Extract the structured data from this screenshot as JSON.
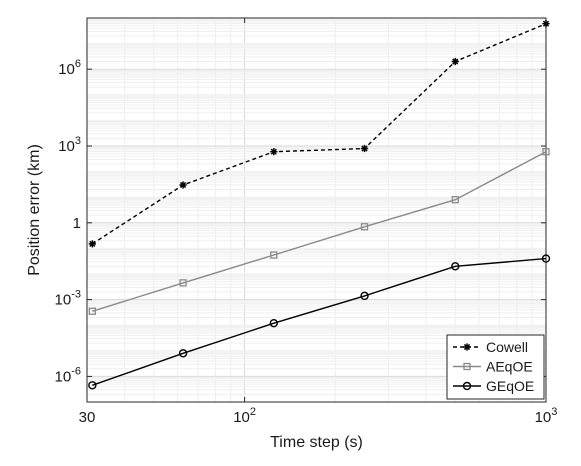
{
  "chart_data": {
    "type": "line",
    "xlabel": "Time step (s)",
    "ylabel": "Position error (km)",
    "xscale": "log",
    "yscale": "log",
    "xlim": [
      30,
      1000
    ],
    "ylim": [
      1e-07,
      100000000.0
    ],
    "x_ticks": [
      {
        "value": 30,
        "label": "30",
        "sup": ""
      },
      {
        "value": 100,
        "label": "10",
        "sup": "2"
      },
      {
        "value": 1000,
        "label": "10",
        "sup": "3"
      }
    ],
    "y_ticks": [
      {
        "value": 1e-06,
        "label": "10",
        "sup": "-6"
      },
      {
        "value": 0.001,
        "label": "10",
        "sup": "-3"
      },
      {
        "value": 1,
        "label": "1",
        "sup": ""
      },
      {
        "value": 1000.0,
        "label": "10",
        "sup": "3"
      },
      {
        "value": 1000000.0,
        "label": "10",
        "sup": "6"
      }
    ],
    "grid": true,
    "minor_grid": true,
    "legend_position": "bottom-right",
    "series": [
      {
        "name": "Cowell",
        "color": "#000000",
        "line_style": "dashed",
        "marker": "asterisk",
        "x": [
          31.25,
          62.5,
          125,
          250,
          500,
          1000
        ],
        "y": [
          0.15,
          30,
          600,
          800,
          2000000,
          60000000
        ]
      },
      {
        "name": "AEqOE",
        "color": "#8a8a8a",
        "line_style": "solid",
        "marker": "square",
        "x": [
          31.25,
          62.5,
          125,
          250,
          500,
          1000
        ],
        "y": [
          0.00035,
          0.0045,
          0.055,
          0.7,
          8,
          600
        ]
      },
      {
        "name": "GEqOE",
        "color": "#000000",
        "line_style": "solid",
        "marker": "circle",
        "x": [
          31.25,
          62.5,
          125,
          250,
          500,
          1000
        ],
        "y": [
          4.5e-07,
          8e-06,
          0.00012,
          0.0014,
          0.02,
          0.04
        ]
      }
    ]
  }
}
